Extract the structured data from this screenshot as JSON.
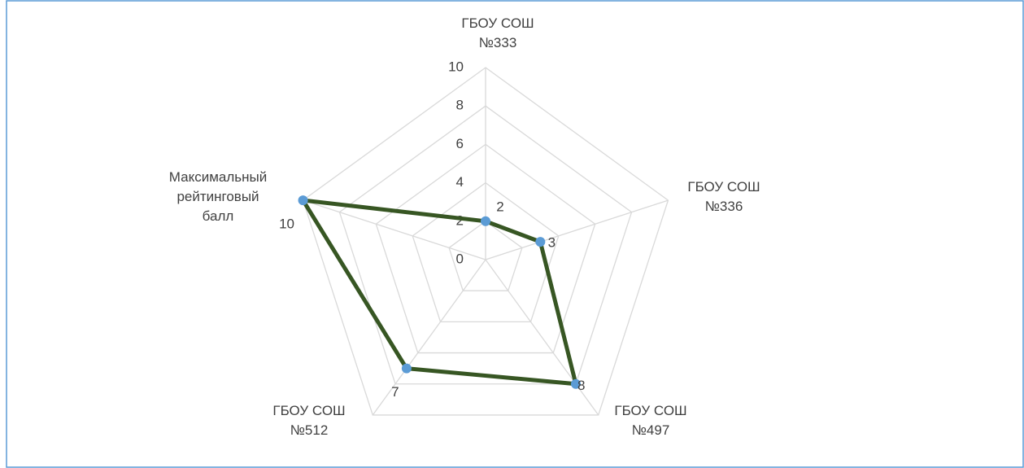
{
  "chart_data": {
    "type": "radar",
    "categories": [
      "ГБОУ СОШ\n№333",
      "ГБОУ СОШ\n№336",
      "ГБОУ СОШ\n№497",
      "ГБОУ СОШ\n№512",
      "Максимальный\nрейтинговый\nбалл"
    ],
    "values": [
      2,
      3,
      8,
      7,
      10
    ],
    "color": "#375623",
    "marker_color": "#5b9bd5",
    "ylim": [
      0,
      10
    ],
    "yticks": [
      0,
      2,
      4,
      6,
      8,
      10
    ],
    "grid": true
  }
}
